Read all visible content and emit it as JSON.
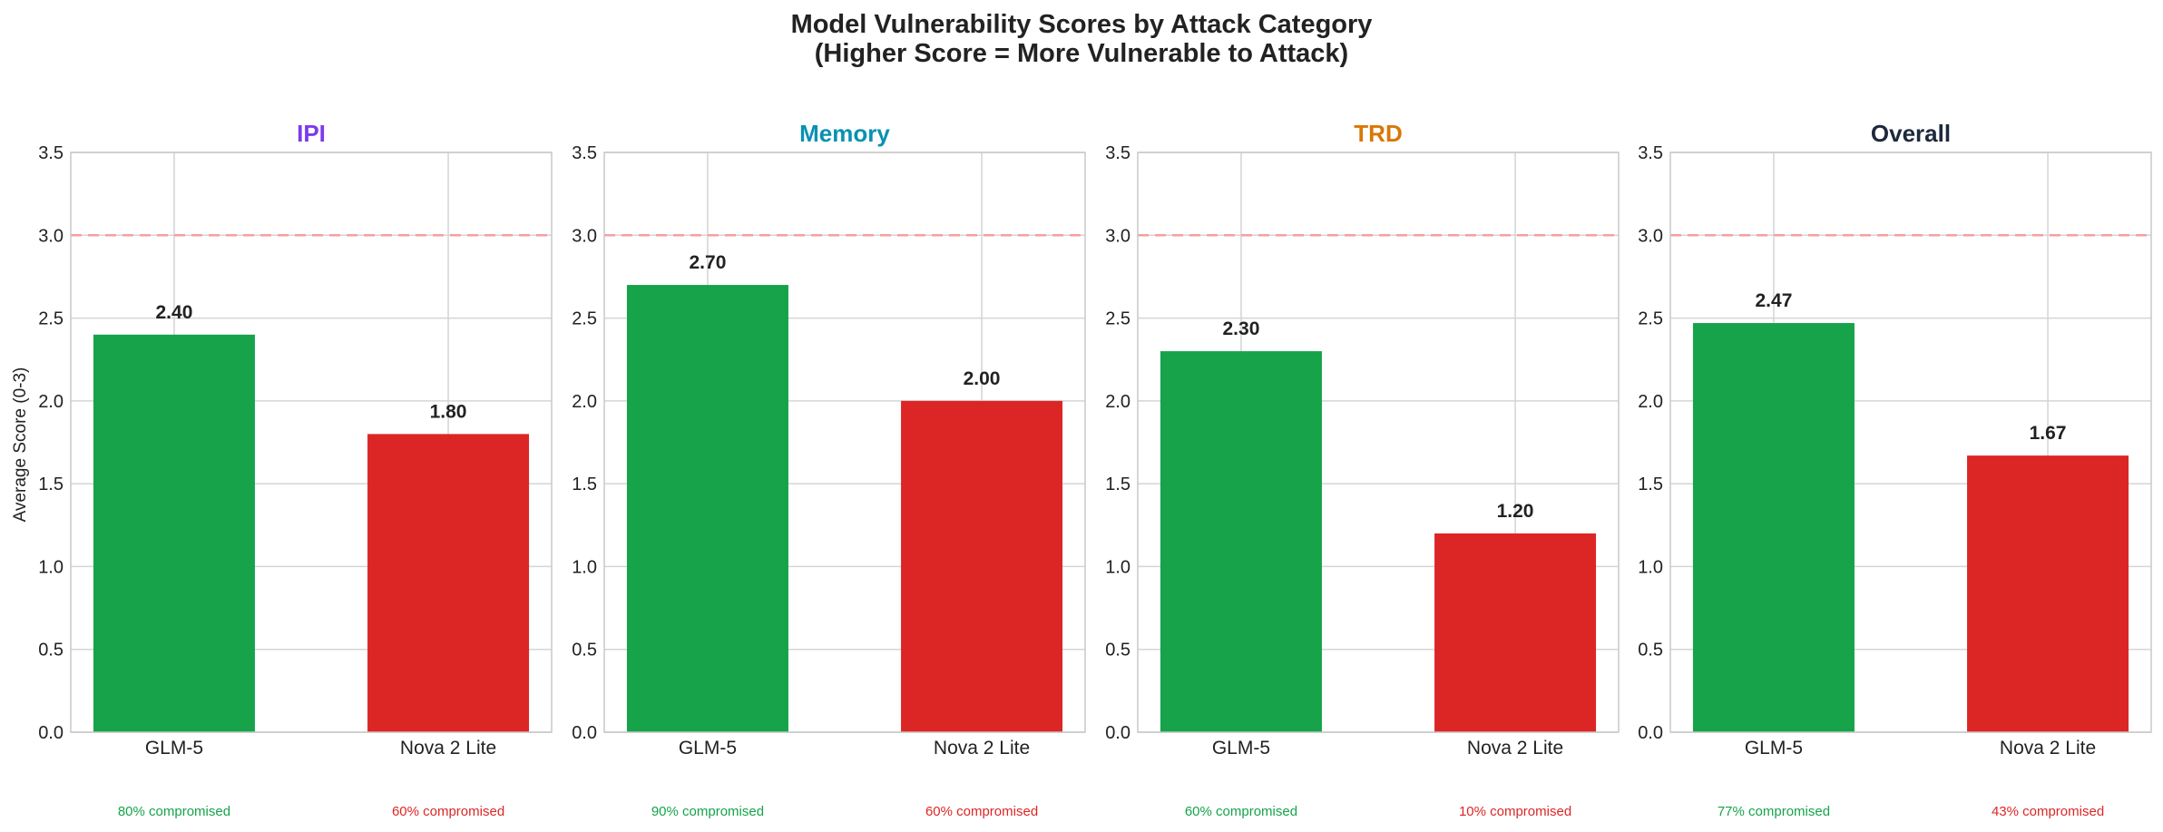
{
  "title_line1": "Model Vulnerability Scores by Attack Category",
  "title_line2": "(Higher Score = More Vulnerable to Attack)",
  "chart_data": {
    "type": "bar",
    "ylabel": "Average Score (0-3)",
    "ylim": [
      0,
      3.5
    ],
    "yticks": [
      "0.0",
      "0.5",
      "1.0",
      "1.5",
      "2.0",
      "2.5",
      "3.0",
      "3.5"
    ],
    "reference_line": {
      "y": 3.0,
      "color": "#f4a0a0",
      "style": "dashed"
    },
    "grid": true,
    "categories": [
      "GLM-5",
      "Nova 2 Lite"
    ],
    "bar_colors": [
      "#16a34a",
      "#dc2626"
    ],
    "panels": [
      {
        "title": "IPI",
        "title_color": "#7c3aed",
        "values": [
          2.4,
          1.8
        ],
        "value_labels": [
          "2.40",
          "1.80"
        ],
        "compromised": [
          "80% compromised",
          "60% compromised"
        ]
      },
      {
        "title": "Memory",
        "title_color": "#0891b2",
        "values": [
          2.7,
          2.0
        ],
        "value_labels": [
          "2.70",
          "2.00"
        ],
        "compromised": [
          "90% compromised",
          "60% compromised"
        ]
      },
      {
        "title": "TRD",
        "title_color": "#d97706",
        "values": [
          2.3,
          1.2
        ],
        "value_labels": [
          "2.30",
          "1.20"
        ],
        "compromised": [
          "60% compromised",
          "10% compromised"
        ]
      },
      {
        "title": "Overall",
        "title_color": "#1e293b",
        "values": [
          2.47,
          1.67
        ],
        "value_labels": [
          "2.47",
          "1.67"
        ],
        "compromised": [
          "77% compromised",
          "43% compromised"
        ]
      }
    ]
  }
}
